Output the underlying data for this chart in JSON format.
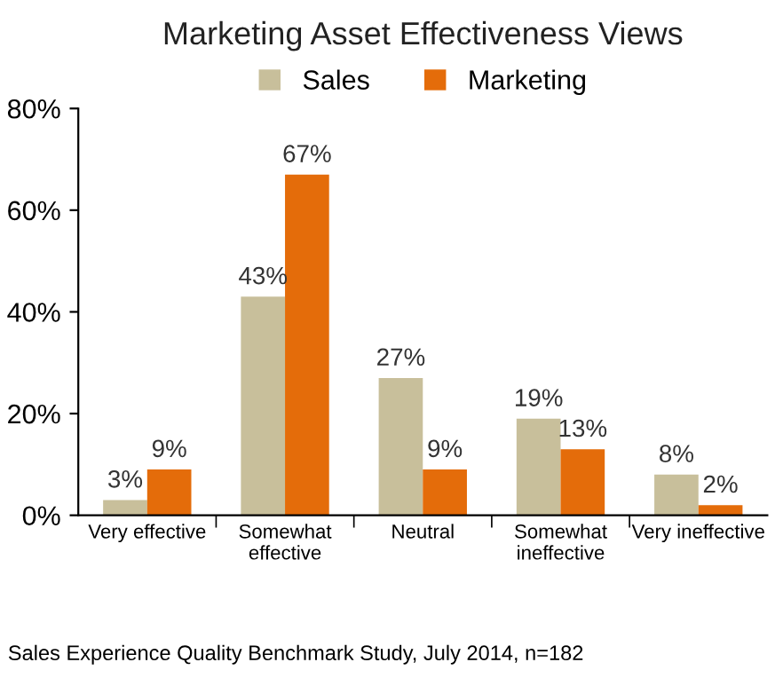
{
  "chart_data": {
    "type": "bar",
    "title": "Marketing Asset Effectiveness Views",
    "categories": [
      "Very effective",
      "Somewhat\neffective",
      "Neutral",
      "Somewhat\nineffective",
      "Very ineffective"
    ],
    "series": [
      {
        "name": "Sales",
        "color": "#c8bf9b",
        "values": [
          3,
          43,
          27,
          19,
          8
        ],
        "value_labels": [
          "3%",
          "43%",
          "27%",
          "19%",
          "8%"
        ]
      },
      {
        "name": "Marketing",
        "color": "#e46c0a",
        "values": [
          9,
          67,
          9,
          13,
          2
        ],
        "value_labels": [
          "9%",
          "67%",
          "9%",
          "13%",
          "2%"
        ]
      }
    ],
    "ylim": [
      0,
      80
    ],
    "yticks": [
      {
        "value": 0,
        "label": "0%"
      },
      {
        "value": 20,
        "label": "20%"
      },
      {
        "value": 40,
        "label": "40%"
      },
      {
        "value": 60,
        "label": "60%"
      },
      {
        "value": 80,
        "label": "80%"
      }
    ],
    "grid": false,
    "legend": "top",
    "annotations": [
      "Sales Experience Quality Benchmark Study, July 2014, n=182"
    ]
  }
}
